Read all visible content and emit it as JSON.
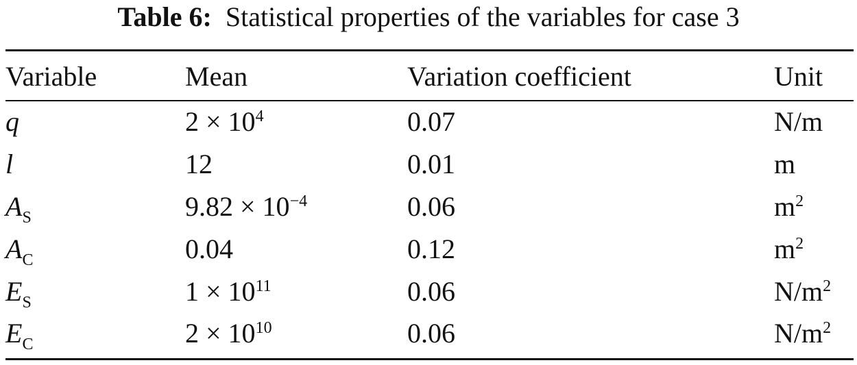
{
  "caption": {
    "label": "Table 6:",
    "text": "Statistical properties of the variables for case 3"
  },
  "table": {
    "headers": {
      "variable": "Variable",
      "mean": "Mean",
      "cv": "Variation coefficient",
      "unit": "Unit"
    },
    "rows": [
      {
        "var": "q",
        "var_sub": "",
        "mean": "2 × 10",
        "mean_sup": "4",
        "cv": "0.07",
        "unit": "N/m",
        "unit_sup": ""
      },
      {
        "var": "l",
        "var_sub": "",
        "mean": "12",
        "mean_sup": "",
        "cv": "0.01",
        "unit": "m",
        "unit_sup": ""
      },
      {
        "var": "A",
        "var_sub": "S",
        "mean": "9.82 × 10",
        "mean_sup": "−4",
        "cv": "0.06",
        "unit": "m",
        "unit_sup": "2"
      },
      {
        "var": "A",
        "var_sub": "C",
        "mean": "0.04",
        "mean_sup": "",
        "cv": "0.12",
        "unit": "m",
        "unit_sup": "2"
      },
      {
        "var": "E",
        "var_sub": "S",
        "mean": "1 × 10",
        "mean_sup": "11",
        "cv": "0.06",
        "unit": "N/m",
        "unit_sup": "2"
      },
      {
        "var": "E",
        "var_sub": "C",
        "mean": "2 × 10",
        "mean_sup": "10",
        "cv": "0.06",
        "unit": "N/m",
        "unit_sup": "2"
      }
    ]
  }
}
